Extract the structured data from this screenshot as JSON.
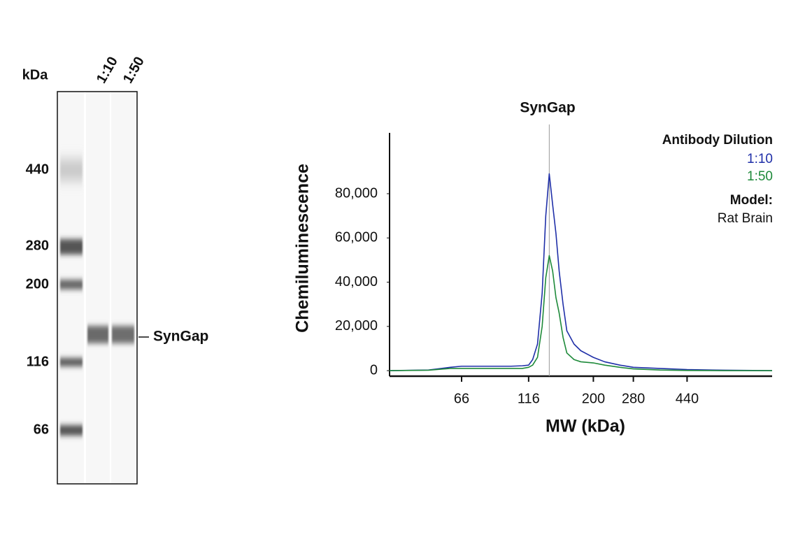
{
  "blot": {
    "unit_label": "kDa",
    "lanes": [
      "1:10",
      "1:50"
    ],
    "markers": [
      "440",
      "280",
      "200",
      "116",
      "66"
    ],
    "target": "SynGap"
  },
  "chart_data": {
    "type": "line",
    "title": "SynGap",
    "x_label": "MW (kDa)",
    "y_label": "Chemiluminescence",
    "xscale": "log",
    "xlim": [
      36,
      900
    ],
    "xticks": [
      66,
      116,
      200,
      280,
      440
    ],
    "ylim": [
      -2500,
      107500
    ],
    "yticks": [
      0,
      {
        "value": 20000,
        "label": "20,000"
      },
      {
        "value": 40000,
        "label": "40,000"
      },
      {
        "value": 60000,
        "label": "60,000"
      },
      {
        "value": 80000,
        "label": "80,000"
      }
    ],
    "annotation": {
      "text": "SynGap",
      "x": 138
    },
    "legend_title": "Antibody Dilution",
    "model_label": "Model:",
    "model": "Rat Brain",
    "x": [
      36,
      50,
      60,
      66,
      80,
      100,
      110,
      116,
      120,
      125,
      130,
      134,
      138,
      142,
      146,
      150,
      155,
      160,
      170,
      180,
      200,
      220,
      250,
      280,
      350,
      440,
      600,
      900
    ],
    "series": [
      {
        "name": "1:10",
        "color": "#1f2fa8",
        "values": [
          0,
          300,
          1500,
          2000,
          2000,
          2000,
          2200,
          2500,
          5000,
          12000,
          35000,
          70000,
          89000,
          75000,
          62000,
          45000,
          30000,
          18000,
          12000,
          9000,
          6000,
          4000,
          2500,
          1500,
          1000,
          500,
          200,
          0
        ]
      },
      {
        "name": "1:50",
        "color": "#1e8a3a",
        "values": [
          0,
          200,
          1000,
          1000,
          1000,
          1000,
          1000,
          1500,
          2500,
          6000,
          20000,
          42000,
          52000,
          45000,
          33000,
          26000,
          15000,
          8000,
          5000,
          4000,
          3500,
          2500,
          1500,
          800,
          300,
          100,
          0,
          0
        ]
      }
    ]
  }
}
